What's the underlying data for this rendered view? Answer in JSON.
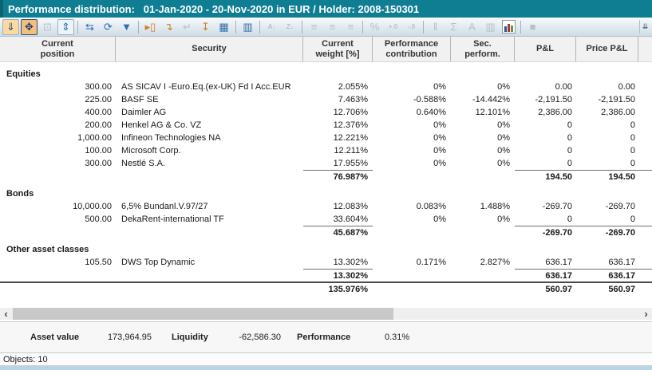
{
  "window": {
    "title": "Performance distribution:   01-Jan-2020 - 20-Nov-2020 in EUR / Holder: 2008-150301",
    "status": "Objects: 10",
    "accent_color": "#0f7e93"
  },
  "toolbar": {
    "overflow_glyph": "⇊",
    "items": [
      {
        "name": "dock-panel-icon",
        "glyph": "⇓",
        "style": "hl-orange",
        "enabled": true
      },
      {
        "name": "fit-to-window-icon",
        "glyph": "✥",
        "style": "pressed",
        "enabled": true
      },
      {
        "name": "fit-selection-icon",
        "glyph": "⊡",
        "style": "disabled",
        "enabled": false
      },
      {
        "name": "fit-height-icon",
        "glyph": "⇕",
        "style": "blue-box",
        "enabled": true
      },
      {
        "sep": true
      },
      {
        "name": "resize-columns-icon",
        "glyph": "⇆",
        "style": "blue",
        "enabled": true
      },
      {
        "name": "refresh-icon",
        "glyph": "⟳",
        "style": "blue",
        "enabled": true
      },
      {
        "name": "filter-icon",
        "glyph": "▼",
        "style": "blue",
        "enabled": true
      },
      {
        "sep": true
      },
      {
        "name": "insert-field-icon",
        "glyph": "▸▯",
        "style": "orange",
        "enabled": true
      },
      {
        "name": "insert-row-icon",
        "glyph": "↴",
        "style": "orange",
        "enabled": true
      },
      {
        "name": "undo-row-icon",
        "glyph": "↵",
        "style": "disabled",
        "enabled": false
      },
      {
        "name": "sum-underline-icon",
        "glyph": "↧",
        "style": "orange",
        "enabled": true
      },
      {
        "name": "scale-values-icon",
        "glyph": "▦",
        "style": "blue",
        "enabled": true
      },
      {
        "sep": true
      },
      {
        "name": "select-columns-icon",
        "glyph": "▥",
        "style": "blue",
        "enabled": true
      },
      {
        "sep": true
      },
      {
        "name": "sort-asc-icon",
        "glyph": "A↓",
        "style": "disabled small",
        "enabled": false
      },
      {
        "name": "sort-desc-icon",
        "glyph": "Z↓",
        "style": "disabled small",
        "enabled": false
      },
      {
        "sep": true
      },
      {
        "name": "align-left-icon",
        "glyph": "≡",
        "style": "disabled",
        "enabled": false
      },
      {
        "name": "align-center-icon",
        "glyph": "≡",
        "style": "disabled",
        "enabled": false
      },
      {
        "name": "align-right-icon",
        "glyph": "≡",
        "style": "disabled",
        "enabled": false
      },
      {
        "sep": true
      },
      {
        "name": "percent-format-icon",
        "glyph": "%",
        "style": "disabled",
        "enabled": false
      },
      {
        "name": "add-decimals-icon",
        "glyph": "+.0",
        "style": "disabled small",
        "enabled": false
      },
      {
        "name": "remove-decimals-icon",
        "glyph": "-.0",
        "style": "disabled small",
        "enabled": false
      },
      {
        "sep": true
      },
      {
        "name": "value-settings-icon",
        "glyph": "‖",
        "style": "disabled",
        "enabled": false
      },
      {
        "name": "sigma-icon",
        "glyph": "Σ",
        "style": "disabled",
        "enabled": false
      },
      {
        "name": "font-icon",
        "glyph": "A",
        "style": "disabled",
        "enabled": false
      },
      {
        "name": "column-select-icon",
        "glyph": "▥",
        "style": "disabled",
        "enabled": false
      },
      {
        "name": "chart-icon",
        "bars": true,
        "enabled": true
      },
      {
        "sep": true
      },
      {
        "name": "stop-icon",
        "glyph": "■",
        "style": "disabled",
        "enabled": false
      }
    ]
  },
  "table": {
    "columns": [
      {
        "label": "Current\nposition"
      },
      {
        "label": "Security"
      },
      {
        "label": "Current\nweight [%]"
      },
      {
        "label": "Performance\ncontribution"
      },
      {
        "label": "Sec.\nperform."
      },
      {
        "label": "P&L"
      },
      {
        "label": "Price P&L"
      },
      {
        "label": ""
      }
    ],
    "sections": [
      {
        "label": "Equities",
        "rows": [
          {
            "position": "300.00",
            "security": "AS SICAV I -Euro.Eq.(ex-UK) Fd I Acc.EUR",
            "weight": "2.055%",
            "contribution": "0%",
            "sec_perform": "0%",
            "pl": "0.00",
            "price_pl": "0.00"
          },
          {
            "position": "225.00",
            "security": "BASF SE",
            "weight": "7.463%",
            "contribution": "-0.588%",
            "sec_perform": "-14.442%",
            "pl": "-2,191.50",
            "price_pl": "-2,191.50"
          },
          {
            "position": "400.00",
            "security": "Daimler AG",
            "weight": "12.706%",
            "contribution": "0.640%",
            "sec_perform": "12.101%",
            "pl": "2,386.00",
            "price_pl": "2,386.00"
          },
          {
            "position": "200.00",
            "security": "Henkel AG & Co. VZ",
            "weight": "12.376%",
            "contribution": "0%",
            "sec_perform": "0%",
            "pl": "0",
            "price_pl": "0"
          },
          {
            "position": "1,000.00",
            "security": "Infineon Technologies NA",
            "weight": "12.221%",
            "contribution": "0%",
            "sec_perform": "0%",
            "pl": "0",
            "price_pl": "0"
          },
          {
            "position": "100.00",
            "security": "Microsoft Corp.",
            "weight": "12.211%",
            "contribution": "0%",
            "sec_perform": "0%",
            "pl": "0",
            "price_pl": "0"
          },
          {
            "position": "300.00",
            "security": "Nestlé S.A.",
            "weight": "17.955%",
            "contribution": "0%",
            "sec_perform": "0%",
            "pl": "0",
            "price_pl": "0"
          }
        ],
        "subtotal": {
          "weight": "76.987%",
          "pl": "194.50",
          "price_pl": "194.50"
        }
      },
      {
        "label": "Bonds",
        "rows": [
          {
            "position": "10,000.00",
            "security": "6,5% Bundanl.V.97/27",
            "weight": "12.083%",
            "contribution": "0.083%",
            "sec_perform": "1.488%",
            "pl": "-269.70",
            "price_pl": "-269.70"
          },
          {
            "position": "500.00",
            "security": "DekaRent-international TF",
            "weight": "33.604%",
            "contribution": "0%",
            "sec_perform": "0%",
            "pl": "0",
            "price_pl": "0"
          }
        ],
        "subtotal": {
          "weight": "45.687%",
          "pl": "-269.70",
          "price_pl": "-269.70"
        }
      },
      {
        "label": "Other asset classes",
        "rows": [
          {
            "position": "105.50",
            "security": "DWS Top Dynamic",
            "weight": "13.302%",
            "contribution": "0.171%",
            "sec_perform": "2.827%",
            "pl": "636.17",
            "price_pl": "636.17"
          }
        ],
        "subtotal": {
          "weight": "13.302%",
          "pl": "636.17",
          "price_pl": "636.17"
        }
      }
    ],
    "total": {
      "weight": "135.976%",
      "pl": "560.97",
      "price_pl": "560.97"
    }
  },
  "scrollbar": {
    "left_glyph": "‹",
    "right_glyph": "›"
  },
  "summary": {
    "items": [
      {
        "label": "Asset value",
        "value": "173,964.95"
      },
      {
        "label": "Liquidity",
        "value": "-62,586.30"
      },
      {
        "label": "Performance",
        "value": "0.31%"
      }
    ]
  }
}
